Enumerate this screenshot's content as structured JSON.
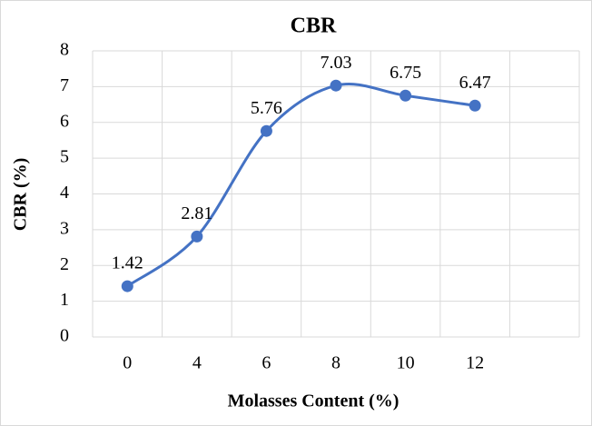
{
  "chart_data": {
    "type": "line",
    "title": "CBR",
    "x_label": "Molasses Content (%)",
    "y_label": "CBR (%)",
    "categories": [
      "0",
      "4",
      "6",
      "8",
      "10",
      "12",
      null
    ],
    "values": [
      1.42,
      2.81,
      5.76,
      7.03,
      6.75,
      6.47,
      null
    ],
    "color": "#4472c4",
    "smooth": true,
    "data_labels": true,
    "ylim": [
      0,
      8
    ],
    "yticks": [
      0,
      1,
      2,
      3,
      4,
      5,
      6,
      7,
      8
    ],
    "grid": true
  }
}
